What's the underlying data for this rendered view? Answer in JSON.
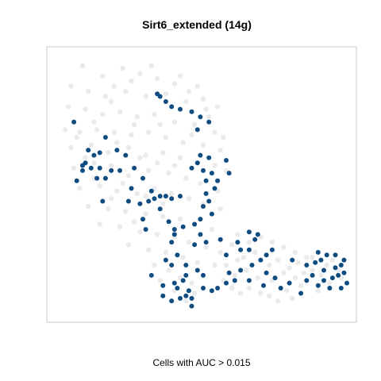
{
  "chart_data": {
    "type": "scatter",
    "title": "Sirt6_extended (14g)",
    "xlabel": "Cells with AUC > 0.015",
    "ylabel": "",
    "xlim": [
      0,
      100
    ],
    "ylim": [
      0,
      100
    ],
    "grid": false,
    "legend": "none",
    "colors": {
      "background_points": "#e6e6e6",
      "highlight_points": "#0f4c81",
      "frame": "#c8c8c8"
    },
    "series": [
      {
        "role": "highlighted",
        "points": [
          [
            34,
            85
          ],
          [
            35,
            84
          ],
          [
            37,
            82
          ],
          [
            39,
            80
          ],
          [
            42,
            79
          ],
          [
            46,
            78
          ],
          [
            49,
            76
          ],
          [
            52,
            74
          ],
          [
            48,
            71
          ],
          [
            5,
            74
          ],
          [
            16,
            68
          ],
          [
            20,
            63
          ],
          [
            23,
            61
          ],
          [
            10,
            63
          ],
          [
            14,
            62
          ],
          [
            12,
            61
          ],
          [
            9,
            58
          ],
          [
            8,
            55
          ],
          [
            8,
            57
          ],
          [
            11,
            56
          ],
          [
            14,
            56
          ],
          [
            18,
            55
          ],
          [
            16,
            52
          ],
          [
            13,
            52
          ],
          [
            6,
            51
          ],
          [
            21,
            55
          ],
          [
            26,
            56
          ],
          [
            29,
            52
          ],
          [
            25,
            48
          ],
          [
            32,
            47
          ],
          [
            35,
            45
          ],
          [
            37,
            45
          ],
          [
            33,
            44
          ],
          [
            15,
            43
          ],
          [
            24,
            43
          ],
          [
            28,
            42
          ],
          [
            31,
            43
          ],
          [
            39,
            44
          ],
          [
            42,
            45
          ],
          [
            49,
            61
          ],
          [
            52,
            60
          ],
          [
            48,
            58
          ],
          [
            46,
            56
          ],
          [
            50,
            55
          ],
          [
            53,
            54
          ],
          [
            51,
            51
          ],
          [
            55,
            51
          ],
          [
            58,
            59
          ],
          [
            59,
            54
          ],
          [
            54,
            48
          ],
          [
            51,
            46
          ],
          [
            52,
            43
          ],
          [
            50,
            41
          ],
          [
            53,
            38
          ],
          [
            49,
            36
          ],
          [
            35,
            40
          ],
          [
            29,
            36
          ],
          [
            30,
            32
          ],
          [
            38,
            35
          ],
          [
            40,
            30
          ],
          [
            66,
            31
          ],
          [
            69,
            30
          ],
          [
            68,
            28
          ],
          [
            62,
            27
          ],
          [
            66,
            24
          ],
          [
            74,
            24
          ],
          [
            72,
            22
          ],
          [
            81,
            20
          ],
          [
            47,
            34
          ],
          [
            43,
            33
          ],
          [
            40,
            32
          ],
          [
            39,
            27
          ],
          [
            41,
            22
          ],
          [
            44,
            18
          ],
          [
            48,
            16
          ],
          [
            50,
            14
          ],
          [
            44,
            14
          ],
          [
            43,
            12
          ],
          [
            40,
            11
          ],
          [
            41,
            9
          ],
          [
            45,
            8
          ],
          [
            44,
            6
          ],
          [
            42,
            5
          ],
          [
            46,
            5
          ],
          [
            46,
            2
          ],
          [
            32,
            14
          ],
          [
            36,
            10
          ],
          [
            39,
            18
          ],
          [
            37,
            20
          ],
          [
            36,
            6
          ],
          [
            39,
            4
          ],
          [
            47,
            26
          ],
          [
            49,
            30
          ],
          [
            51,
            27
          ],
          [
            58,
            22
          ],
          [
            63,
            24
          ],
          [
            56,
            28
          ],
          [
            59,
            15
          ],
          [
            63,
            16
          ],
          [
            67,
            18
          ],
          [
            70,
            20
          ],
          [
            72,
            15
          ],
          [
            66,
            12
          ],
          [
            71,
            10
          ],
          [
            75,
            13
          ],
          [
            77,
            9
          ],
          [
            80,
            11
          ],
          [
            61,
            12
          ],
          [
            58,
            11
          ],
          [
            55,
            9
          ],
          [
            53,
            8
          ],
          [
            50,
            9
          ],
          [
            84,
            7
          ],
          [
            86,
            18
          ],
          [
            89,
            19
          ],
          [
            91,
            20
          ],
          [
            93,
            22
          ],
          [
            92,
            16
          ],
          [
            96,
            17
          ],
          [
            98,
            18
          ],
          [
            99,
            20
          ],
          [
            99,
            15
          ],
          [
            97,
            14
          ],
          [
            95,
            13
          ],
          [
            92,
            12
          ],
          [
            90,
            10
          ],
          [
            94,
            9
          ],
          [
            98,
            9
          ],
          [
            100,
            11
          ],
          [
            88,
            14
          ],
          [
            86,
            12
          ],
          [
            96,
            22
          ],
          [
            90,
            23
          ]
        ]
      },
      {
        "role": "background",
        "points": [
          [
            8,
            96
          ],
          [
            15,
            92
          ],
          [
            22,
            95
          ],
          [
            28,
            93
          ],
          [
            34,
            91
          ],
          [
            40,
            89
          ],
          [
            45,
            86
          ],
          [
            50,
            83
          ],
          [
            55,
            80
          ],
          [
            4,
            88
          ],
          [
            10,
            86
          ],
          [
            16,
            84
          ],
          [
            23,
            86
          ],
          [
            30,
            84
          ],
          [
            37,
            85
          ],
          [
            44,
            82
          ],
          [
            51,
            79
          ],
          [
            3,
            80
          ],
          [
            9,
            79
          ],
          [
            15,
            77
          ],
          [
            21,
            78
          ],
          [
            27,
            76
          ],
          [
            33,
            77
          ],
          [
            40,
            74
          ],
          [
            47,
            73
          ],
          [
            54,
            70
          ],
          [
            2,
            71
          ],
          [
            7,
            70
          ],
          [
            13,
            71
          ],
          [
            19,
            70
          ],
          [
            25,
            69
          ],
          [
            31,
            70
          ],
          [
            37,
            68
          ],
          [
            43,
            66
          ],
          [
            50,
            65
          ],
          [
            56,
            63
          ],
          [
            4,
            64
          ],
          [
            11,
            65
          ],
          [
            17,
            62
          ],
          [
            24,
            64
          ],
          [
            30,
            61
          ],
          [
            36,
            62
          ],
          [
            42,
            60
          ],
          [
            48,
            58
          ],
          [
            54,
            57
          ],
          [
            58,
            55
          ],
          [
            5,
            56
          ],
          [
            12,
            58
          ],
          [
            18,
            57
          ],
          [
            24,
            53
          ],
          [
            31,
            55
          ],
          [
            38,
            54
          ],
          [
            44,
            52
          ],
          [
            49,
            50
          ],
          [
            55,
            47
          ],
          [
            7,
            48
          ],
          [
            14,
            49
          ],
          [
            20,
            47
          ],
          [
            27,
            46
          ],
          [
            33,
            48
          ],
          [
            39,
            46
          ],
          [
            45,
            44
          ],
          [
            50,
            42
          ],
          [
            56,
            40
          ],
          [
            10,
            41
          ],
          [
            17,
            40
          ],
          [
            23,
            39
          ],
          [
            30,
            38
          ],
          [
            36,
            37
          ],
          [
            42,
            36
          ],
          [
            47,
            34
          ],
          [
            53,
            32
          ],
          [
            14,
            34
          ],
          [
            21,
            33
          ],
          [
            28,
            31
          ],
          [
            34,
            30
          ],
          [
            40,
            29
          ],
          [
            45,
            27
          ],
          [
            51,
            25
          ],
          [
            56,
            23
          ],
          [
            24,
            26
          ],
          [
            31,
            24
          ],
          [
            37,
            23
          ],
          [
            43,
            21
          ],
          [
            48,
            19
          ],
          [
            54,
            18
          ],
          [
            60,
            26
          ],
          [
            62,
            20
          ],
          [
            38,
            16
          ],
          [
            42,
            13
          ],
          [
            46,
            11
          ],
          [
            40,
            8
          ],
          [
            44,
            4
          ],
          [
            47,
            7
          ],
          [
            35,
            12
          ],
          [
            33,
            18
          ],
          [
            58,
            18
          ],
          [
            61,
            14
          ],
          [
            64,
            21
          ],
          [
            68,
            23
          ],
          [
            65,
            16
          ],
          [
            69,
            13
          ],
          [
            73,
            18
          ],
          [
            76,
            20
          ],
          [
            74,
            12
          ],
          [
            78,
            15
          ],
          [
            80,
            17
          ],
          [
            82,
            13
          ],
          [
            79,
            8
          ],
          [
            84,
            10
          ],
          [
            83,
            19
          ],
          [
            86,
            21
          ],
          [
            57,
            12
          ],
          [
            60,
            9
          ],
          [
            63,
            7
          ],
          [
            66,
            9
          ],
          [
            70,
            7
          ],
          [
            73,
            6
          ],
          [
            76,
            4
          ],
          [
            81,
            5
          ],
          [
            88,
            16
          ],
          [
            91,
            14
          ],
          [
            93,
            18
          ],
          [
            95,
            20
          ],
          [
            97,
            16
          ],
          [
            88,
            21
          ],
          [
            85,
            15
          ],
          [
            90,
            8
          ],
          [
            94,
            11
          ],
          [
            98,
            13
          ],
          [
            66,
            27
          ],
          [
            70,
            29
          ],
          [
            74,
            27
          ],
          [
            78,
            25
          ],
          [
            82,
            23
          ],
          [
            62,
            30
          ],
          [
            25,
            90
          ],
          [
            32,
            96
          ],
          [
            42,
            92
          ],
          [
            18,
            82
          ],
          [
            12,
            74
          ],
          [
            26,
            73
          ],
          [
            35,
            73
          ],
          [
            46,
            69
          ],
          [
            20,
            66
          ],
          [
            28,
            60
          ],
          [
            34,
            58
          ],
          [
            40,
            57
          ],
          [
            22,
            50
          ],
          [
            30,
            45
          ],
          [
            36,
            42
          ],
          [
            26,
            35
          ],
          [
            18,
            44
          ],
          [
            12,
            52
          ],
          [
            9,
            60
          ],
          [
            6,
            68
          ],
          [
            19,
            88
          ],
          [
            48,
            88
          ],
          [
            52,
            76
          ],
          [
            57,
            68
          ]
        ]
      }
    ]
  }
}
